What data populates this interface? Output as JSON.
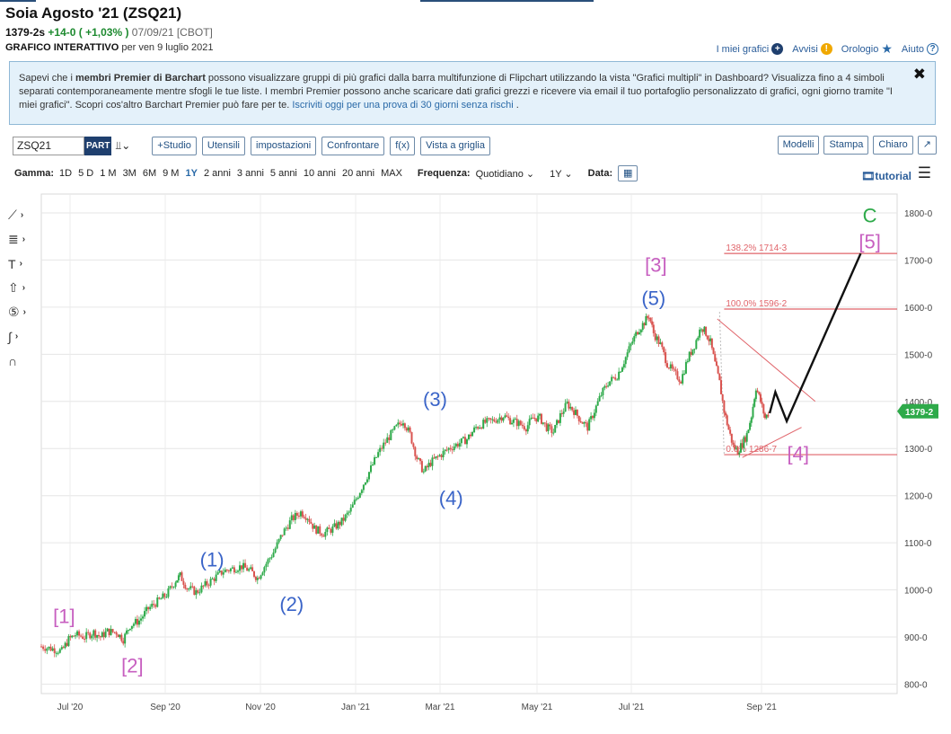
{
  "header": {
    "title": "Soia Agosto '21 (ZSQ21)",
    "last": "1379-2s",
    "change": "+14-0 ( +1,03% )",
    "date": "07/09/21 [CBOT]",
    "sub_bold": "GRAFICO INTERATTIVO",
    "sub_rest": "per ven 9 luglio 2021"
  },
  "top_links": [
    {
      "label": "I miei grafici",
      "icon": "plus-circle-icon",
      "color": "#1f3f6e",
      "glyph": "+"
    },
    {
      "label": "Avvisi",
      "icon": "alert-icon",
      "color": "#f0a800",
      "glyph": "!"
    },
    {
      "label": "Orologio",
      "icon": "star-icon",
      "color": "#2a6aa8",
      "glyph": "★"
    },
    {
      "label": "Aiuto",
      "icon": "help-icon",
      "color": "#2a6aa8",
      "glyph": "?"
    }
  ],
  "promo": {
    "t1": "Sapevi che i ",
    "b1": "membri Premier di Barchart",
    "t2": " possono visualizzare gruppi di più grafici dalla barra multifunzione di Flipchart utilizzando la vista \"Grafici multipli\" in Dashboard? Visualizza fino a 4 simboli separati contemporaneamente mentre sfogli le tue liste. I membri Premier possono anche scaricare dati grafici grezzi e ricevere via email il tuo portafoglio personalizzato di grafici, ogni giorno tramite \"I miei grafici\". Scopri cos'altro Barchart Premier può fare per te. ",
    "link": "Iscriviti oggi per una prova di 30 giorni senza rischi",
    "t3": " .",
    "close": "✖"
  },
  "toolbar": {
    "symbol": "ZSQ21",
    "part": "PART",
    "left_buttons": [
      "+Studio",
      "Utensili",
      "impostazioni",
      "Confrontare",
      "f(x)",
      "Vista a griglia"
    ],
    "right_buttons": [
      "Modelli",
      "Stampa",
      "Chiaro",
      "↗"
    ]
  },
  "rangebar": {
    "gamma_label": "Gamma:",
    "ranges": [
      "1D",
      "5 D",
      "1 M",
      "3M",
      "6M",
      "9 M",
      "1Y",
      "2 anni",
      "3 anni",
      "5 anni",
      "10 anni",
      "20 anni",
      "MAX"
    ],
    "selected": "1Y",
    "freq_label": "Frequenza:",
    "freq_value": "Quotidiano ⌄",
    "period_value": "1Y ⌄",
    "date_label": "Data:",
    "tutorial": "tutorial"
  },
  "chart_data": {
    "type": "candlestick",
    "y_range": [
      780,
      1840
    ],
    "y_ticks": [
      "800-0",
      "900-0",
      "1000-0",
      "1100-0",
      "1200-0",
      "1300-0",
      "1400-0",
      "1500-0",
      "1600-0",
      "1700-0",
      "1800-0"
    ],
    "x_ticks": [
      "Jul '20",
      "Sep '20",
      "Nov '20",
      "Jan '21",
      "Mar '21",
      "May '21",
      "Jul '21",
      "Sep '21"
    ],
    "last_price_label": "1379-2",
    "last_price": 1379,
    "price_path": [
      [
        0,
        880
      ],
      [
        10,
        875
      ],
      [
        18,
        870
      ],
      [
        24,
        895
      ],
      [
        30,
        905
      ],
      [
        38,
        900
      ],
      [
        46,
        910
      ],
      [
        52,
        900
      ],
      [
        58,
        912
      ],
      [
        66,
        910
      ],
      [
        72,
        895
      ],
      [
        78,
        925
      ],
      [
        86,
        935
      ],
      [
        94,
        960
      ],
      [
        102,
        975
      ],
      [
        110,
        990
      ],
      [
        118,
        1020
      ],
      [
        122,
        1030
      ],
      [
        128,
        1005
      ],
      [
        136,
        995
      ],
      [
        144,
        1010
      ],
      [
        152,
        1025
      ],
      [
        160,
        1040
      ],
      [
        168,
        1045
      ],
      [
        176,
        1050
      ],
      [
        184,
        1040
      ],
      [
        190,
        1025
      ],
      [
        196,
        1050
      ],
      [
        204,
        1080
      ],
      [
        212,
        1120
      ],
      [
        220,
        1150
      ],
      [
        228,
        1165
      ],
      [
        234,
        1155
      ],
      [
        240,
        1130
      ],
      [
        248,
        1120
      ],
      [
        256,
        1130
      ],
      [
        264,
        1145
      ],
      [
        272,
        1170
      ],
      [
        280,
        1210
      ],
      [
        288,
        1250
      ],
      [
        296,
        1290
      ],
      [
        304,
        1320
      ],
      [
        312,
        1345
      ],
      [
        318,
        1360
      ],
      [
        324,
        1330
      ],
      [
        330,
        1280
      ],
      [
        336,
        1250
      ],
      [
        342,
        1270
      ],
      [
        350,
        1285
      ],
      [
        358,
        1300
      ],
      [
        366,
        1310
      ],
      [
        374,
        1320
      ],
      [
        382,
        1345
      ],
      [
        390,
        1355
      ],
      [
        398,
        1360
      ],
      [
        406,
        1370
      ],
      [
        412,
        1360
      ],
      [
        418,
        1355
      ],
      [
        426,
        1345
      ],
      [
        432,
        1365
      ],
      [
        438,
        1365
      ],
      [
        444,
        1345
      ],
      [
        450,
        1335
      ],
      [
        456,
        1370
      ],
      [
        462,
        1395
      ],
      [
        468,
        1380
      ],
      [
        474,
        1360
      ],
      [
        480,
        1345
      ],
      [
        486,
        1380
      ],
      [
        492,
        1415
      ],
      [
        498,
        1440
      ],
      [
        506,
        1455
      ],
      [
        512,
        1485
      ],
      [
        518,
        1520
      ],
      [
        524,
        1550
      ],
      [
        530,
        1568
      ],
      [
        534,
        1583
      ],
      [
        538,
        1545
      ],
      [
        544,
        1520
      ],
      [
        550,
        1480
      ],
      [
        556,
        1460
      ],
      [
        562,
        1445
      ],
      [
        568,
        1490
      ],
      [
        574,
        1520
      ],
      [
        580,
        1560
      ],
      [
        584,
        1545
      ],
      [
        588,
        1525
      ],
      [
        592,
        1480
      ],
      [
        596,
        1440
      ],
      [
        600,
        1380
      ],
      [
        604,
        1340
      ],
      [
        608,
        1305
      ],
      [
        612,
        1295
      ],
      [
        616,
        1310
      ],
      [
        620,
        1330
      ],
      [
        624,
        1370
      ],
      [
        628,
        1430
      ],
      [
        632,
        1400
      ],
      [
        636,
        1365
      ],
      [
        640,
        1379
      ]
    ],
    "ref_lines": [
      {
        "label": "138.2% 1714-3",
        "value": 1714
      },
      {
        "label": "100.0% 1596-2",
        "value": 1596
      },
      {
        "label": "0.0% 1286-7",
        "value": 1287
      }
    ],
    "projection": [
      [
        640,
        1375
      ],
      [
        645,
        1420
      ],
      [
        655,
        1358
      ],
      [
        720,
        1714
      ]
    ],
    "wave_labels": [
      {
        "text": "[1]",
        "x": 20,
        "y": 930,
        "color": "#c75fc0"
      },
      {
        "text": "[2]",
        "x": 80,
        "y": 825,
        "color": "#c75fc0"
      },
      {
        "text": "(1)",
        "x": 150,
        "y": 1050,
        "color": "#3a64c8"
      },
      {
        "text": "(2)",
        "x": 220,
        "y": 955,
        "color": "#3a64c8"
      },
      {
        "text": "(3)",
        "x": 346,
        "y": 1390,
        "color": "#3a64c8"
      },
      {
        "text": "(4)",
        "x": 360,
        "y": 1180,
        "color": "#3a64c8"
      },
      {
        "text": "(5)",
        "x": 538,
        "y": 1605,
        "color": "#3a64c8"
      },
      {
        "text": "[3]",
        "x": 540,
        "y": 1675,
        "color": "#c75fc0"
      },
      {
        "text": "[4]",
        "x": 665,
        "y": 1275,
        "color": "#c75fc0"
      },
      {
        "text": "[5]",
        "x": 728,
        "y": 1725,
        "color": "#c75fc0"
      },
      {
        "text": "C",
        "x": 728,
        "y": 1780,
        "color": "#2eaa4a"
      }
    ],
    "colors": {
      "up": "#2eaa4a",
      "down": "#d9534f",
      "ref": "#e0646a",
      "projection": "#111111",
      "badge": "#2eaa4a"
    }
  }
}
